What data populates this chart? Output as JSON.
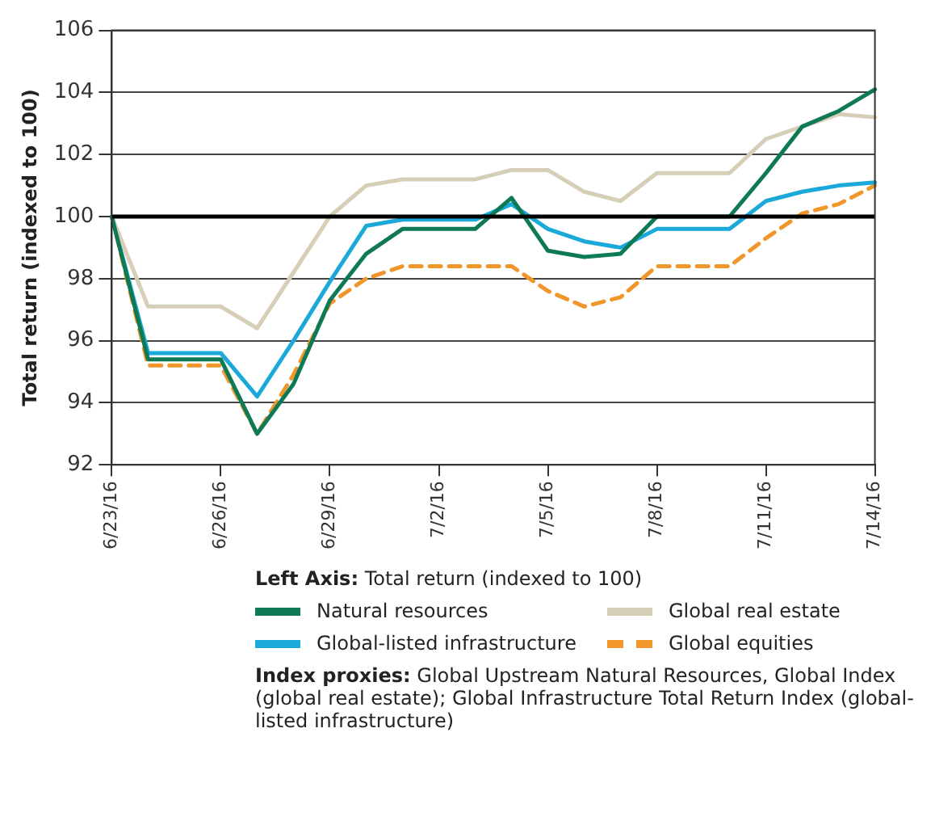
{
  "chart_data": {
    "type": "line",
    "ylabel": "Total return (indexed to 100)",
    "categories": [
      "6/23/16",
      null,
      null,
      "6/26/16",
      null,
      null,
      "6/29/16",
      null,
      null,
      "7/2/16",
      null,
      null,
      "7/5/16",
      null,
      null,
      "7/8/16",
      null,
      null,
      "7/11/16",
      null,
      null,
      "7/14/16"
    ],
    "series": [
      {
        "name": "Natural resources",
        "color": "#0e7a55",
        "values": [
          100,
          95.4,
          95.4,
          95.4,
          93.0,
          94.6,
          97.3,
          98.8,
          99.6,
          99.6,
          99.6,
          100.6,
          98.9,
          98.7,
          98.8,
          100,
          100,
          100,
          101.4,
          102.9,
          103.4,
          104.1
        ]
      },
      {
        "name": "Global real estate",
        "color": "#d6ceb6",
        "values": [
          100,
          97.1,
          97.1,
          97.1,
          96.4,
          98.2,
          100,
          101,
          101.2,
          101.2,
          101.2,
          101.5,
          101.5,
          100.8,
          100.5,
          101.4,
          101.4,
          101.4,
          102.5,
          102.9,
          103.3,
          103.2
        ]
      },
      {
        "name": "Global-listed infrastructure",
        "color": "#1ba9d9",
        "values": [
          100,
          95.6,
          95.6,
          95.6,
          94.2,
          96,
          97.9,
          99.7,
          99.9,
          99.9,
          99.9,
          100.4,
          99.6,
          99.2,
          99,
          99.6,
          99.6,
          99.6,
          100.5,
          100.8,
          101,
          101.1
        ]
      },
      {
        "name": "Global equities",
        "color": "#f0962a",
        "line_style": "dashed",
        "values": [
          100,
          95.2,
          95.2,
          95.2,
          93,
          94.9,
          97.2,
          98,
          98.4,
          98.4,
          98.4,
          98.4,
          97.6,
          97.1,
          97.4,
          98.4,
          98.4,
          98.4,
          99.3,
          100.1,
          100.4,
          101
        ]
      }
    ],
    "ylim": [
      92,
      106
    ],
    "yticks": [
      92,
      94,
      96,
      98,
      100,
      102,
      104,
      106
    ],
    "grid": "y",
    "legend": "bottom",
    "marker": "none",
    "line_style": "solid",
    "ref_lines": [
      {
        "axis": "y",
        "value": 100,
        "color": "#000000"
      }
    ],
    "annotations": [
      "Left Axis: Total return (indexed to 100)",
      "Index proxies: Global Upstream Natural Resources, Global Index (global real estate); Global Infrastructure Total Return Index (global-listed infrastructure)"
    ]
  }
}
